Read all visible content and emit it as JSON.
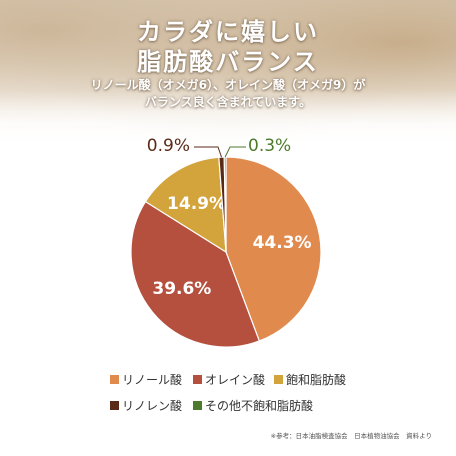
{
  "header": {
    "title_line1": "カラダに嬉しい",
    "title_line2": "脂肪酸バランス",
    "description_line1": "リノール酸（オメガ6）、オレイン酸（オメガ9）が",
    "description_line2": "バランス良く含まれています。"
  },
  "chart_data": {
    "type": "pie",
    "slices": [
      {
        "name": "リノール酸",
        "value": 44.3,
        "label": "44.3%",
        "color": "#e08a4e"
      },
      {
        "name": "オレイン酸",
        "value": 39.6,
        "label": "39.6%",
        "color": "#b5503f"
      },
      {
        "name": "飽和脂肪酸",
        "value": 14.9,
        "label": "14.9%",
        "color": "#d3a33c"
      },
      {
        "name": "リノレン酸",
        "value": 0.9,
        "label": "0.9%",
        "color": "#5a2a17"
      },
      {
        "name": "その他不飽和脂肪酸",
        "value": 0.3,
        "label": "0.3%",
        "color": "#4e7a2c"
      }
    ],
    "legend_placement": "bottom"
  },
  "footnote": "※参考：日本油脂検査協会　日本植物油協会　資料より"
}
